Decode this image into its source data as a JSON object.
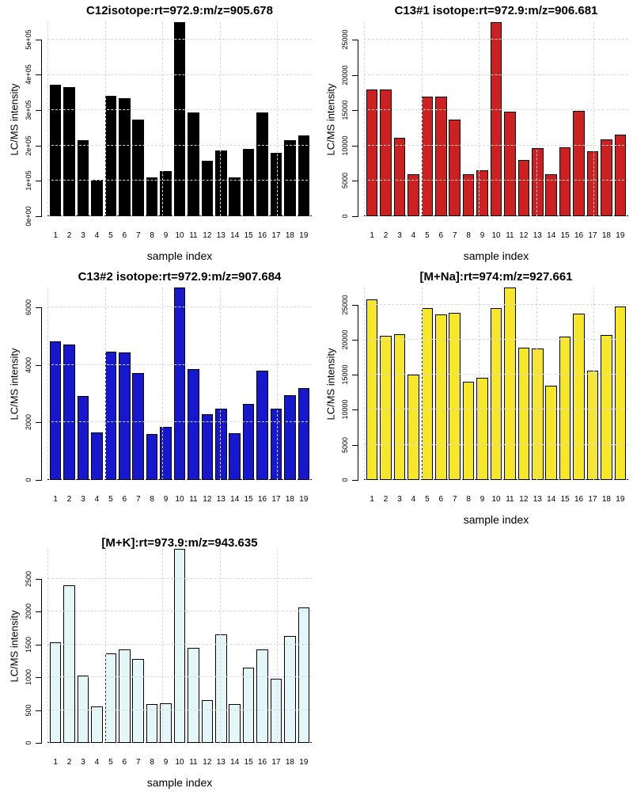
{
  "chart_data": [
    {
      "type": "bar",
      "title": "C12isotope:rt=972.9:m/z=905.678",
      "xlabel": "sample index",
      "ylabel": "LC/MS intensity",
      "categories": [
        "1",
        "2",
        "3",
        "4",
        "5",
        "6",
        "7",
        "8",
        "9",
        "10",
        "11",
        "12",
        "13",
        "14",
        "15",
        "16",
        "17",
        "18",
        "19"
      ],
      "values": [
        372000,
        365000,
        215000,
        103000,
        341000,
        334000,
        273000,
        110000,
        128000,
        563000,
        294000,
        157000,
        186000,
        110000,
        190000,
        294000,
        179000,
        215000,
        228000
      ],
      "yticks": {
        "values": [
          0,
          100000,
          200000,
          300000,
          400000,
          500000
        ],
        "labels": [
          "0e+00",
          "1e+05",
          "2e+05",
          "3e+05",
          "4e+05",
          "5e+05"
        ]
      },
      "ylim": [
        0,
        549000
      ],
      "bar_color": "#000000",
      "bar_border": "#000000",
      "grid": "dashed",
      "legend": "none"
    },
    {
      "type": "bar",
      "title": "C13#1 isotope:rt=972.9:m/z=906.681",
      "xlabel": "sample index",
      "ylabel": "LC/MS intensity",
      "categories": [
        "1",
        "2",
        "3",
        "4",
        "5",
        "6",
        "7",
        "8",
        "9",
        "10",
        "11",
        "12",
        "13",
        "14",
        "15",
        "16",
        "17",
        "18",
        "19"
      ],
      "values": [
        18000,
        18000,
        11100,
        5900,
        16900,
        16900,
        13700,
        5900,
        6500,
        28000,
        14800,
        8000,
        9700,
        5900,
        9800,
        14900,
        9200,
        10900,
        11600
      ],
      "yticks": {
        "values": [
          0,
          5000,
          10000,
          15000,
          20000,
          25000
        ],
        "labels": [
          "0",
          "5000",
          "10000",
          "15000",
          "20000",
          "25000"
        ]
      },
      "ylim": [
        0,
        27500
      ],
      "bar_color": "#CD2020",
      "bar_border": "#000000",
      "grid": "dashed",
      "legend": "none"
    },
    {
      "type": "bar",
      "title": "C13#2 isotope:rt=972.9:m/z=907.684",
      "xlabel": "",
      "ylabel": "LC/MS intensity",
      "categories": [
        "1",
        "2",
        "3",
        "4",
        "5",
        "6",
        "7",
        "8",
        "9",
        "10",
        "11",
        "12",
        "13",
        "14",
        "15",
        "16",
        "17",
        "18",
        "19"
      ],
      "values": [
        4820,
        4710,
        2930,
        1650,
        4480,
        4430,
        3710,
        1610,
        1860,
        6760,
        3850,
        2290,
        2470,
        1630,
        2660,
        3800,
        2470,
        2940,
        3190
      ],
      "yticks": {
        "values": [
          0,
          2000,
          4000,
          6000
        ],
        "labels": [
          "0",
          "2000",
          "4000",
          "6000"
        ]
      },
      "ylim": [
        0,
        6700
      ],
      "bar_color": "#1717CD",
      "bar_border": "#000000",
      "grid": "dashed",
      "legend": "none"
    },
    {
      "type": "bar",
      "title": "[M+Na]:rt=974:m/z=927.661",
      "xlabel": "sample index",
      "ylabel": "LC/MS intensity",
      "categories": [
        "1",
        "2",
        "3",
        "4",
        "5",
        "6",
        "7",
        "8",
        "9",
        "10",
        "11",
        "12",
        "13",
        "14",
        "15",
        "16",
        "17",
        "18",
        "19"
      ],
      "values": [
        25800,
        20600,
        20800,
        15000,
        24500,
        23600,
        23800,
        14000,
        14600,
        24500,
        27400,
        18900,
        18800,
        13500,
        20500,
        23700,
        15600,
        20700,
        24700
      ],
      "yticks": {
        "values": [
          0,
          5000,
          10000,
          15000,
          20000,
          25000
        ],
        "labels": [
          "0",
          "5000",
          "10000",
          "15000",
          "20000",
          "25000"
        ]
      },
      "ylim": [
        0,
        27450
      ],
      "bar_color": "#F6E72B",
      "bar_border": "#000000",
      "grid": "dashed",
      "legend": "none"
    },
    {
      "type": "bar",
      "title": "[M+K]:rt=973.9:m/z=943.635",
      "xlabel": "sample index",
      "ylabel": "LC/MS intensity",
      "categories": [
        "1",
        "2",
        "3",
        "4",
        "5",
        "6",
        "7",
        "8",
        "9",
        "10",
        "11",
        "12",
        "13",
        "14",
        "15",
        "16",
        "17",
        "18",
        "19"
      ],
      "values": [
        1540,
        2400,
        1030,
        560,
        1370,
        1430,
        1280,
        590,
        600,
        2980,
        1450,
        650,
        1650,
        590,
        1150,
        1420,
        980,
        1630,
        2070
      ],
      "yticks": {
        "values": [
          0,
          500,
          1000,
          1500,
          2000,
          2500
        ],
        "labels": [
          "0",
          "500",
          "1000",
          "1500",
          "2000",
          "2500"
        ]
      },
      "ylim": [
        0,
        2960
      ],
      "bar_color": "#E3F6F8",
      "bar_border": "#000000",
      "grid": "dashed",
      "legend": "none"
    }
  ],
  "colors": {
    "background": "#ffffff",
    "gridline": "#d9d9d9",
    "axis": "#000000",
    "bar_black": "#000000",
    "bar_red": "#CD2020",
    "bar_blue": "#1717CD",
    "bar_yellow": "#F6E72B",
    "bar_lightcyan": "#E3F6F8"
  }
}
